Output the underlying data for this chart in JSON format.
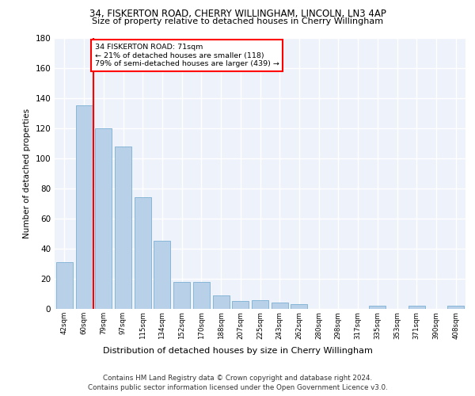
{
  "title1": "34, FISKERTON ROAD, CHERRY WILLINGHAM, LINCOLN, LN3 4AP",
  "title2": "Size of property relative to detached houses in Cherry Willingham",
  "xlabel": "Distribution of detached houses by size in Cherry Willingham",
  "ylabel": "Number of detached properties",
  "categories": [
    "42sqm",
    "60sqm",
    "79sqm",
    "97sqm",
    "115sqm",
    "134sqm",
    "152sqm",
    "170sqm",
    "188sqm",
    "207sqm",
    "225sqm",
    "243sqm",
    "262sqm",
    "280sqm",
    "298sqm",
    "317sqm",
    "335sqm",
    "353sqm",
    "371sqm",
    "390sqm",
    "408sqm"
  ],
  "values": [
    31,
    135,
    120,
    108,
    74,
    45,
    18,
    18,
    9,
    5,
    6,
    4,
    3,
    0,
    0,
    0,
    2,
    0,
    2,
    0,
    2
  ],
  "bar_color": "#b8d0e8",
  "bar_edge_color": "#7aafd4",
  "vline_color": "red",
  "annotation_text": "34 FISKERTON ROAD: 71sqm\n← 21% of detached houses are smaller (118)\n79% of semi-detached houses are larger (439) →",
  "annotation_box_color": "white",
  "annotation_box_edge_color": "red",
  "ylim": [
    0,
    180
  ],
  "yticks": [
    0,
    20,
    40,
    60,
    80,
    100,
    120,
    140,
    160,
    180
  ],
  "footer1": "Contains HM Land Registry data © Crown copyright and database right 2024.",
  "footer2": "Contains public sector information licensed under the Open Government Licence v3.0.",
  "plot_bg_color": "#eef2fa"
}
